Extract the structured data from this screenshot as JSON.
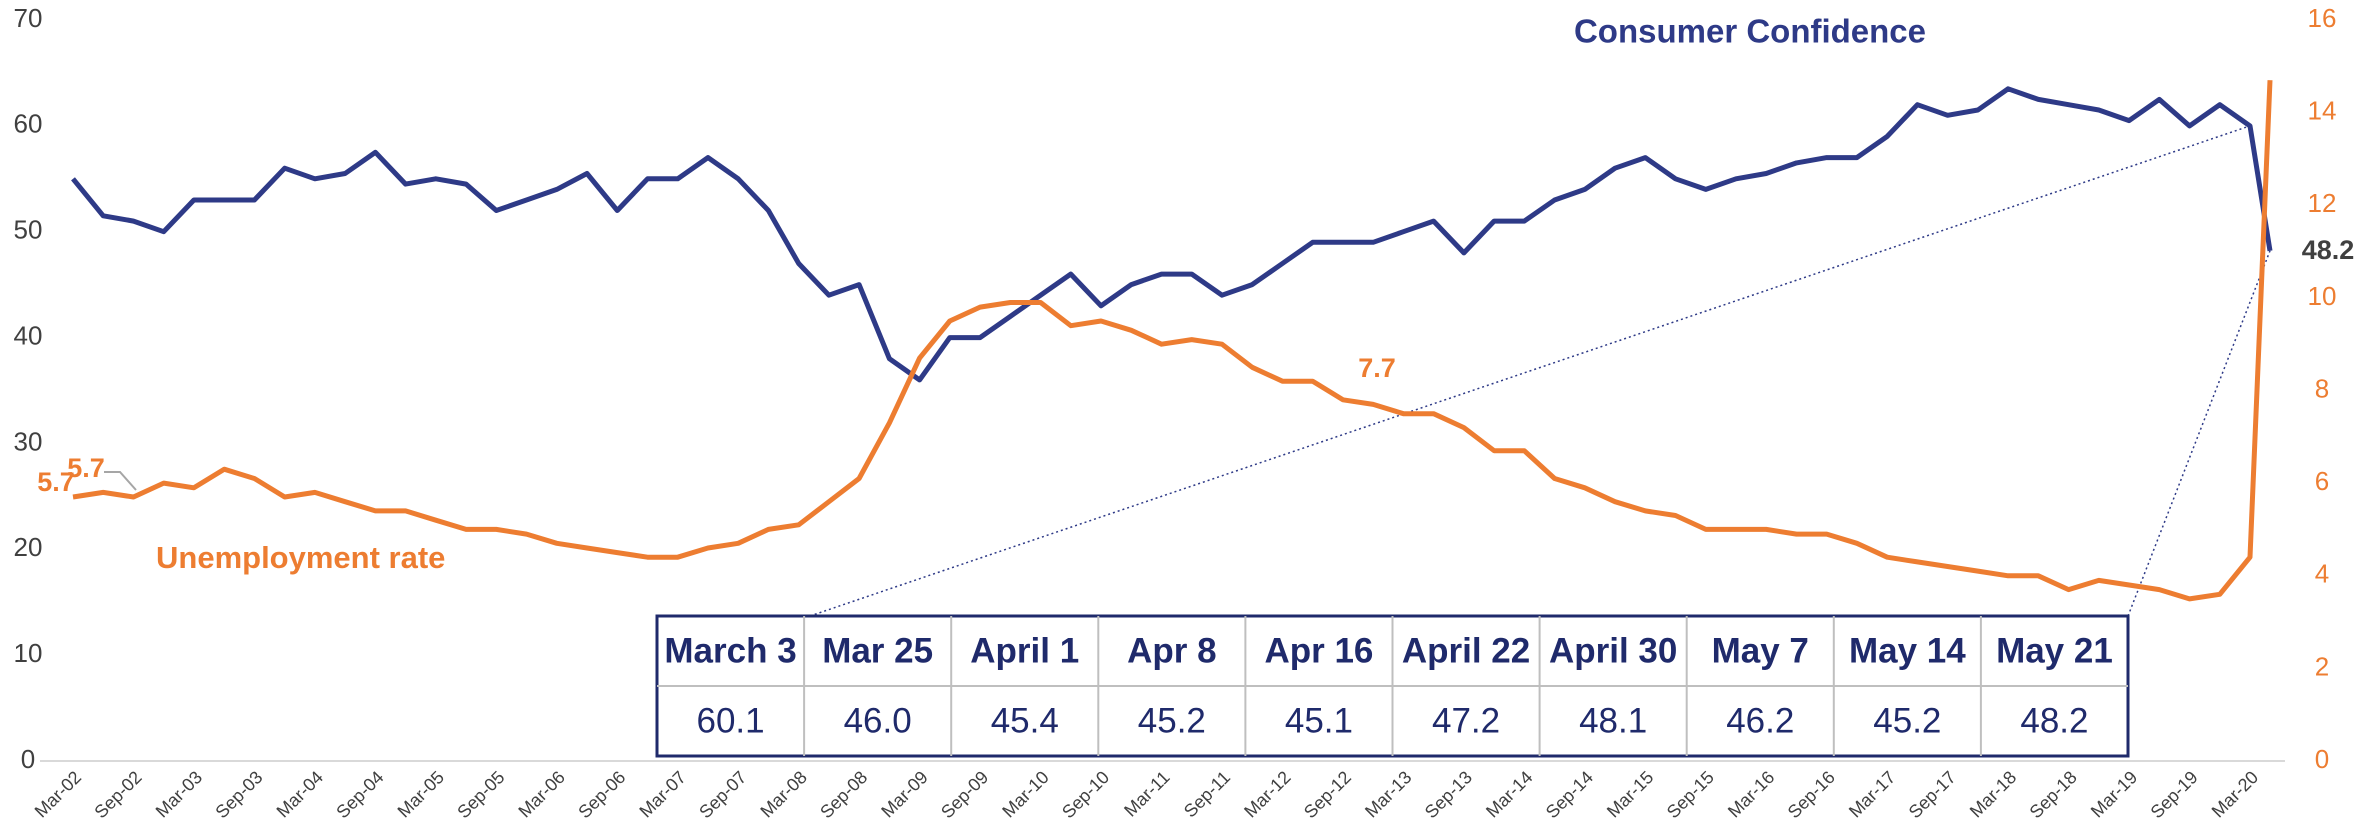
{
  "chart_data": {
    "type": "line",
    "title": "Consumer Confidence",
    "categories": [
      "Mar-02",
      null,
      "Sep-02",
      null,
      "Mar-03",
      null,
      "Sep-03",
      null,
      "Mar-04",
      null,
      "Sep-04",
      null,
      "Mar-05",
      null,
      "Sep-05",
      null,
      "Mar-06",
      null,
      "Sep-06",
      null,
      "Mar-07",
      null,
      "Sep-07",
      null,
      "Mar-08",
      null,
      "Sep-08",
      null,
      "Mar-09",
      null,
      "Sep-09",
      null,
      "Mar-10",
      null,
      "Sep-10",
      null,
      "Mar-11",
      null,
      "Sep-11",
      null,
      "Mar-12",
      null,
      "Sep-12",
      null,
      "Mar-13",
      null,
      "Sep-13",
      null,
      "Mar-14",
      null,
      "Sep-14",
      null,
      "Mar-15",
      null,
      "Sep-15",
      null,
      "Mar-16",
      null,
      "Sep-16",
      null,
      "Mar-17",
      null,
      "Sep-17",
      null,
      "Mar-18",
      null,
      "Sep-18",
      null,
      "Mar-19",
      null,
      "Sep-19",
      null,
      "Mar-20",
      null
    ],
    "series": [
      {
        "name": "Consumer Confidence",
        "color": "#2e3a87",
        "axis": "y",
        "values": [
          55,
          51.5,
          51,
          50,
          53,
          53,
          53,
          56,
          55,
          55.5,
          57.5,
          54.5,
          55,
          54.5,
          52,
          53,
          54,
          55.5,
          52,
          55,
          55,
          57,
          55,
          52,
          47,
          44,
          45,
          38,
          36,
          40,
          40,
          42,
          44,
          46,
          43,
          45,
          46,
          46,
          44,
          45,
          47,
          49,
          49,
          49,
          50,
          51,
          48,
          51,
          51,
          53,
          54,
          56,
          57,
          55,
          54,
          55,
          55.5,
          56.5,
          57,
          57,
          59,
          62,
          61,
          61.5,
          63.5,
          62.5,
          62,
          61.5,
          60.5,
          62.5,
          60,
          62,
          60,
          48.2
        ]
      },
      {
        "name": "Unemployment rate",
        "color": "#ed7d31",
        "axis": "y2",
        "values": [
          5.7,
          5.8,
          5.7,
          6.0,
          5.9,
          6.3,
          6.1,
          5.7,
          5.8,
          5.6,
          5.4,
          5.4,
          5.2,
          5.0,
          5.0,
          4.9,
          4.7,
          4.6,
          4.5,
          4.4,
          4.4,
          4.6,
          4.7,
          5.0,
          5.1,
          5.6,
          6.1,
          7.3,
          8.7,
          9.5,
          9.8,
          9.9,
          9.9,
          9.4,
          9.5,
          9.3,
          9.0,
          9.1,
          9.0,
          8.5,
          8.2,
          8.2,
          7.8,
          7.7,
          7.5,
          7.5,
          7.2,
          6.7,
          6.7,
          6.1,
          5.9,
          5.6,
          5.4,
          5.3,
          5.0,
          5.0,
          5.0,
          4.9,
          4.9,
          4.7,
          4.4,
          4.3,
          4.2,
          4.1,
          4.0,
          4.0,
          3.7,
          3.9,
          3.8,
          3.7,
          3.5,
          3.6,
          4.4,
          14.7
        ]
      }
    ],
    "annotations": [
      "5.7",
      "5.7",
      "7.7",
      "48.2"
    ],
    "ylim": [
      0,
      70
    ],
    "yticks": [
      0,
      10,
      20,
      30,
      40,
      50,
      60,
      70
    ],
    "y2lim": [
      0,
      16
    ],
    "y2ticks": [
      0,
      2,
      4,
      6,
      8,
      10,
      12,
      14,
      16
    ]
  },
  "table": {
    "headers": [
      "March 3",
      "Mar 25",
      "April 1",
      "Apr 8",
      "Apr 16",
      "April 22",
      "April 30",
      "May 7",
      "May 14",
      "May 21"
    ],
    "values": [
      "60.1",
      "46.0",
      "45.4",
      "45.2",
      "45.1",
      "47.2",
      "48.1",
      "46.2",
      "45.2",
      "48.2"
    ]
  }
}
